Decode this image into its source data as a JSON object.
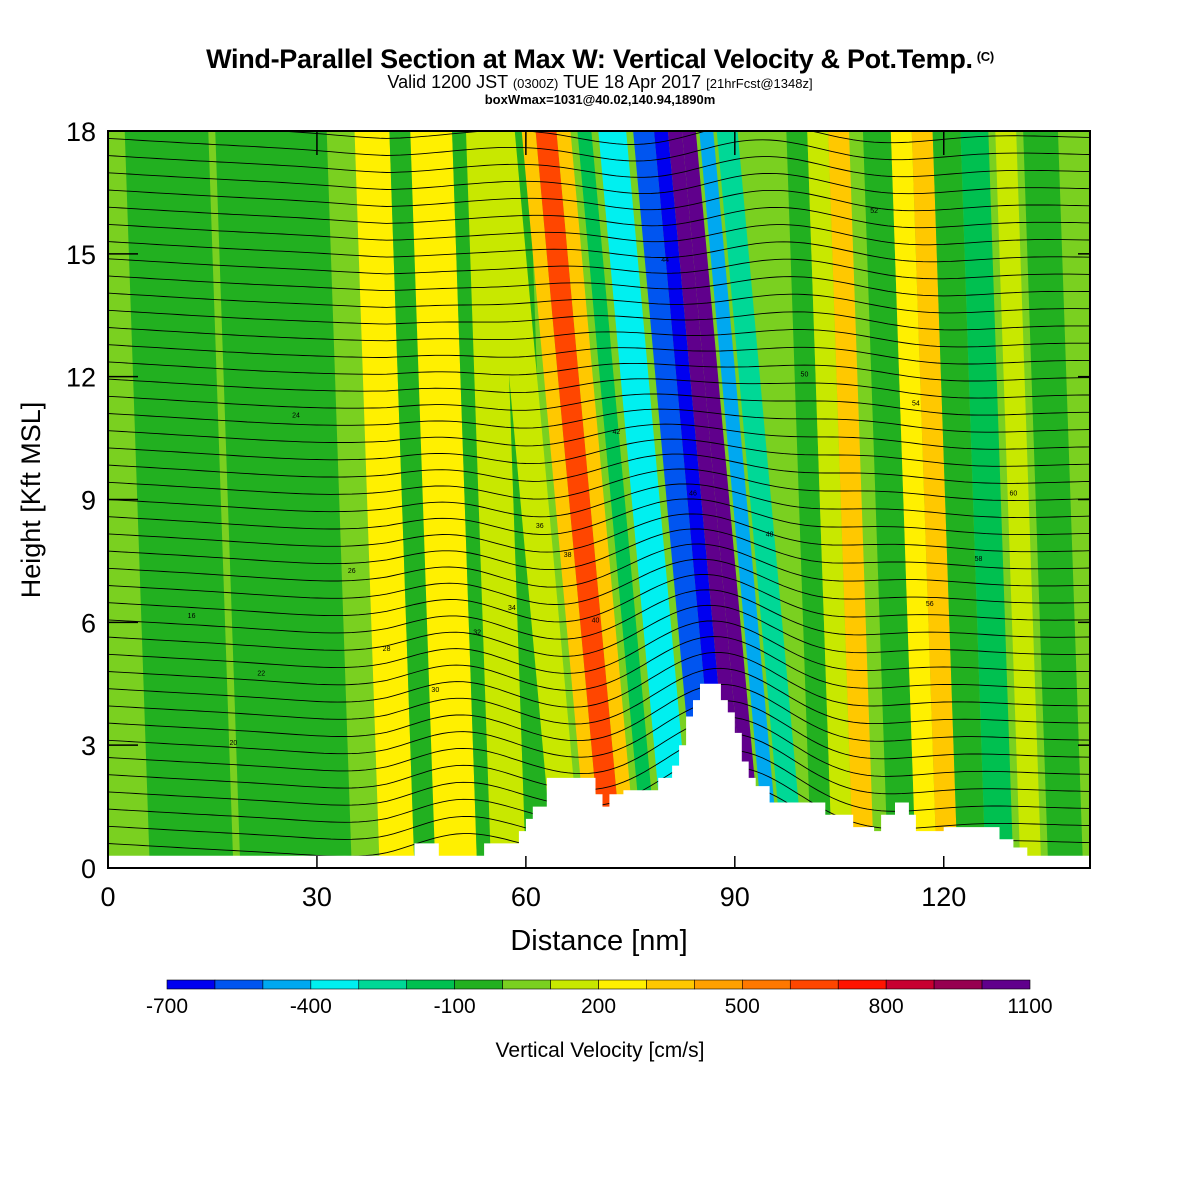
{
  "title": {
    "main": "Wind-Parallel Section at Max W: Vertical Velocity & Pot.Temp.",
    "copyright": "(C)",
    "valid_prefix": "Valid 1200 JST",
    "valid_utc": "(0300Z)",
    "valid_date": "TUE 18 Apr 2017",
    "forecast": "[21hrFcst@1348z]",
    "box": "boxWmax=1031@40.02,140.94,1890m"
  },
  "colorbar": {
    "label": "Vertical Velocity [cm/s]",
    "tick_labels": [
      "-700",
      "-400",
      "-100",
      "200",
      "500",
      "800",
      "1100"
    ],
    "colors": [
      "#0000f0",
      "#0055f0",
      "#00a8f0",
      "#00f0f0",
      "#00d896",
      "#00c050",
      "#22b020",
      "#7ad020",
      "#c8e800",
      "#fff000",
      "#ffc800",
      "#ffa000",
      "#ff7800",
      "#ff4600",
      "#ff1400",
      "#c80030",
      "#960050",
      "#60008c"
    ]
  },
  "chart_data": {
    "type": "heatmap",
    "description_type": "cross-section contour",
    "xlabel": "Distance [nm]",
    "ylabel": "Height [Kft MSL]",
    "xlim": [
      0,
      141
    ],
    "ylim": [
      0,
      18
    ],
    "xticks": [
      0,
      30,
      60,
      90,
      120
    ],
    "yticks": [
      0,
      3,
      6,
      9,
      12,
      15,
      18
    ],
    "vertical_velocity_bands": [
      {
        "x": 1,
        "w": 3,
        "value": 10
      },
      {
        "x": 6,
        "w": 12,
        "value": -60
      },
      {
        "x": 19,
        "w": 16,
        "value": -140
      },
      {
        "x": 39,
        "w": 5,
        "value": 200
      },
      {
        "x": 44,
        "w": 4,
        "value": -130
      },
      {
        "x": 47,
        "w": 6,
        "value": 150
      },
      {
        "x": 53,
        "w": 3,
        "value": -70
      },
      {
        "x": 55,
        "w": 5,
        "value": 100
      },
      {
        "x": 60,
        "w": 4,
        "value": -120
      },
      {
        "x": 64,
        "w": 4,
        "value": 80
      },
      {
        "x": 69,
        "w": 2,
        "value": 250
      },
      {
        "x": 71,
        "w": 3,
        "value": 600
      },
      {
        "x": 74,
        "w": 2,
        "value": 280
      },
      {
        "x": 77,
        "w": 2,
        "value": -200
      },
      {
        "x": 80,
        "w": 4,
        "value": -380
      },
      {
        "x": 85,
        "w": 3,
        "value": -560
      },
      {
        "x": 88,
        "w": 2,
        "value": -700
      },
      {
        "x": 90,
        "w": 2,
        "value": 950
      },
      {
        "x": 92,
        "w": 2,
        "value": 1031
      },
      {
        "x": 94.5,
        "w": 2,
        "value": -550
      },
      {
        "x": 97,
        "w": 3,
        "value": -300
      },
      {
        "x": 101,
        "w": 3,
        "value": -80
      },
      {
        "x": 104,
        "w": 3,
        "value": 100
      },
      {
        "x": 107,
        "w": 3,
        "value": 320
      },
      {
        "x": 112,
        "w": 4,
        "value": -130
      },
      {
        "x": 116,
        "w": 3,
        "value": 150
      },
      {
        "x": 119,
        "w": 3,
        "value": 280
      },
      {
        "x": 122,
        "w": 4,
        "value": -90
      },
      {
        "x": 126,
        "w": 4,
        "value": -240
      },
      {
        "x": 131,
        "w": 3,
        "value": 120
      },
      {
        "x": 135,
        "w": 5,
        "value": -120
      }
    ],
    "terrain": [
      [
        0,
        0.3
      ],
      [
        44,
        0.3
      ],
      [
        44,
        0.6
      ],
      [
        47.5,
        0.6
      ],
      [
        47.5,
        0.3
      ],
      [
        54,
        0.3
      ],
      [
        54,
        0.6
      ],
      [
        59,
        0.6
      ],
      [
        59,
        0.9
      ],
      [
        60,
        0.9
      ],
      [
        60,
        1.2
      ],
      [
        61,
        1.2
      ],
      [
        61,
        1.5
      ],
      [
        63,
        1.5
      ],
      [
        63,
        2.2
      ],
      [
        70,
        2.2
      ],
      [
        70,
        1.8
      ],
      [
        71,
        1.8
      ],
      [
        71,
        1.5
      ],
      [
        72,
        1.5
      ],
      [
        72,
        1.8
      ],
      [
        74,
        1.8
      ],
      [
        74,
        1.9
      ],
      [
        79,
        1.9
      ],
      [
        79,
        2.2
      ],
      [
        81,
        2.2
      ],
      [
        81,
        2.5
      ],
      [
        82,
        2.5
      ],
      [
        82,
        3.0
      ],
      [
        83,
        3.0
      ],
      [
        83,
        3.7
      ],
      [
        84,
        3.7
      ],
      [
        84,
        4.1
      ],
      [
        85,
        4.1
      ],
      [
        85,
        4.5
      ],
      [
        88,
        4.5
      ],
      [
        88,
        4.1
      ],
      [
        89,
        4.1
      ],
      [
        89,
        3.8
      ],
      [
        90,
        3.8
      ],
      [
        90,
        3.3
      ],
      [
        91,
        3.3
      ],
      [
        91,
        2.6
      ],
      [
        92,
        2.6
      ],
      [
        92,
        2.2
      ],
      [
        93,
        2.2
      ],
      [
        93,
        2.0
      ],
      [
        95,
        2.0
      ],
      [
        95,
        1.6
      ],
      [
        103,
        1.6
      ],
      [
        103,
        1.3
      ],
      [
        107,
        1.3
      ],
      [
        107,
        1.0
      ],
      [
        110,
        1.0
      ],
      [
        110,
        0.9
      ],
      [
        111,
        0.9
      ],
      [
        111,
        1.3
      ],
      [
        113,
        1.3
      ],
      [
        113,
        1.6
      ],
      [
        115,
        1.6
      ],
      [
        115,
        1.3
      ],
      [
        116,
        1.3
      ],
      [
        116,
        0.9
      ],
      [
        120,
        0.9
      ],
      [
        120,
        1.0
      ],
      [
        128,
        1.0
      ],
      [
        128,
        0.7
      ],
      [
        130,
        0.7
      ],
      [
        130,
        0.5
      ],
      [
        132,
        0.5
      ],
      [
        132,
        0.3
      ],
      [
        141,
        0.3
      ]
    ],
    "theta_label_values": [
      "16",
      "20",
      "22",
      "24",
      "26",
      "28",
      "30",
      "32",
      "34",
      "36",
      "38",
      "40",
      "42",
      "44",
      "46",
      "48",
      "50",
      "52",
      "54",
      "56",
      "58",
      "60"
    ]
  }
}
